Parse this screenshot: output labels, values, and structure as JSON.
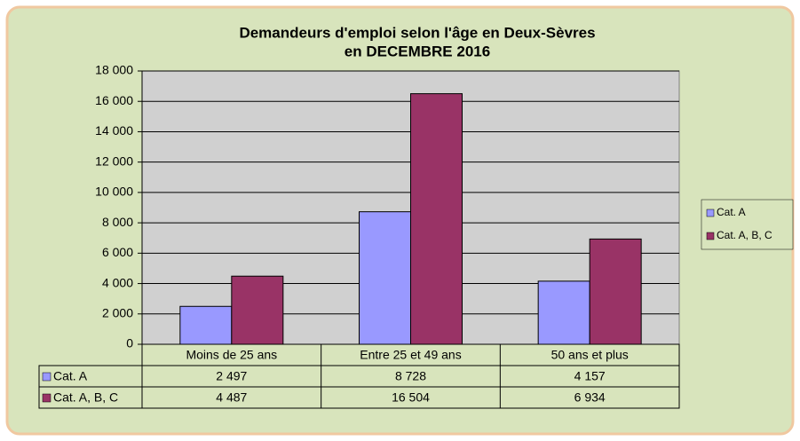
{
  "chart_data": {
    "type": "bar",
    "title": [
      "Demandeurs d'emploi selon l'âge en Deux-Sèvres",
      "en DECEMBRE 2016"
    ],
    "categories": [
      "Moins de 25 ans",
      "Entre 25 et 49 ans",
      "50 ans et plus"
    ],
    "series": [
      {
        "name": "Cat. A",
        "color": "#9999ff",
        "values": [
          2497,
          8728,
          4157
        ],
        "value_labels": [
          "2 497",
          "8 728",
          "4 157"
        ]
      },
      {
        "name": "Cat. A, B, C",
        "color": "#993366",
        "values": [
          4487,
          16504,
          6934
        ],
        "value_labels": [
          "4 487",
          "16 504",
          "6 934"
        ]
      }
    ],
    "ylim": [
      0,
      18000
    ],
    "yticks": [
      0,
      {
        "value": 2000,
        "label": "2 000"
      },
      {
        "value": 4000,
        "label": "4 000"
      },
      {
        "value": 6000,
        "label": "6 000"
      },
      {
        "value": 8000,
        "label": "8 000"
      },
      {
        "value": 10000,
        "label": "10 000"
      },
      {
        "value": 12000,
        "label": "12 000"
      },
      {
        "value": 14000,
        "label": "14 000"
      },
      {
        "value": 16000,
        "label": "16 000"
      },
      {
        "value": 18000,
        "label": "18 000"
      }
    ],
    "grid": true,
    "legend": "right"
  }
}
